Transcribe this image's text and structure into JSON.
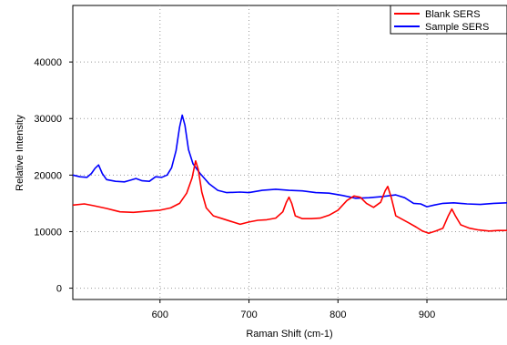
{
  "chart_data": {
    "type": "line",
    "title": "",
    "xlabel": "Raman Shift (cm-1)",
    "ylabel": "Relative Intensity",
    "xlim": [
      502,
      990
    ],
    "ylim": [
      -2000,
      50000
    ],
    "x_ticks": [
      600,
      700,
      800,
      900
    ],
    "y_ticks": [
      0,
      10000,
      20000,
      30000,
      40000
    ],
    "x_tick_labels": [
      "600",
      "700",
      "800",
      "900"
    ],
    "y_tick_labels": [
      "0",
      "10000",
      "20000",
      "30000",
      "40000"
    ],
    "grid": "dotted",
    "legend": "top-right",
    "series": [
      {
        "name": "Blank SERS",
        "color": "#ff0000",
        "points": [
          [
            502,
            14700
          ],
          [
            515,
            14900
          ],
          [
            525,
            14600
          ],
          [
            540,
            14100
          ],
          [
            555,
            13500
          ],
          [
            570,
            13400
          ],
          [
            585,
            13600
          ],
          [
            600,
            13800
          ],
          [
            612,
            14200
          ],
          [
            622,
            15000
          ],
          [
            630,
            16800
          ],
          [
            636,
            19500
          ],
          [
            640,
            22500
          ],
          [
            643,
            21000
          ],
          [
            647,
            17000
          ],
          [
            652,
            14200
          ],
          [
            660,
            12800
          ],
          [
            670,
            12300
          ],
          [
            680,
            11800
          ],
          [
            690,
            11300
          ],
          [
            700,
            11700
          ],
          [
            710,
            12000
          ],
          [
            720,
            12100
          ],
          [
            730,
            12400
          ],
          [
            738,
            13500
          ],
          [
            742,
            15200
          ],
          [
            745,
            16100
          ],
          [
            748,
            15000
          ],
          [
            752,
            12800
          ],
          [
            760,
            12300
          ],
          [
            770,
            12300
          ],
          [
            780,
            12400
          ],
          [
            790,
            12900
          ],
          [
            800,
            13800
          ],
          [
            810,
            15500
          ],
          [
            818,
            16300
          ],
          [
            825,
            16100
          ],
          [
            832,
            15000
          ],
          [
            840,
            14300
          ],
          [
            848,
            15200
          ],
          [
            853,
            17200
          ],
          [
            856,
            18000
          ],
          [
            860,
            16000
          ],
          [
            865,
            12800
          ],
          [
            872,
            12200
          ],
          [
            880,
            11500
          ],
          [
            888,
            10800
          ],
          [
            895,
            10100
          ],
          [
            902,
            9700
          ],
          [
            910,
            10100
          ],
          [
            918,
            10600
          ],
          [
            924,
            12800
          ],
          [
            928,
            14000
          ],
          [
            932,
            12800
          ],
          [
            938,
            11200
          ],
          [
            948,
            10600
          ],
          [
            958,
            10300
          ],
          [
            970,
            10100
          ],
          [
            980,
            10200
          ],
          [
            990,
            10200
          ]
        ]
      },
      {
        "name": "Sample SERS",
        "color": "#0000ff",
        "points": [
          [
            502,
            20000
          ],
          [
            510,
            19700
          ],
          [
            518,
            19600
          ],
          [
            523,
            20300
          ],
          [
            527,
            21200
          ],
          [
            531,
            21800
          ],
          [
            535,
            20300
          ],
          [
            540,
            19200
          ],
          [
            550,
            18900
          ],
          [
            560,
            18800
          ],
          [
            567,
            19100
          ],
          [
            573,
            19400
          ],
          [
            580,
            19000
          ],
          [
            588,
            18900
          ],
          [
            595,
            19700
          ],
          [
            602,
            19600
          ],
          [
            608,
            20000
          ],
          [
            613,
            21300
          ],
          [
            618,
            24300
          ],
          [
            622,
            28500
          ],
          [
            625,
            30600
          ],
          [
            628,
            28800
          ],
          [
            632,
            24500
          ],
          [
            637,
            22000
          ],
          [
            645,
            20300
          ],
          [
            655,
            18500
          ],
          [
            665,
            17300
          ],
          [
            675,
            16900
          ],
          [
            690,
            17000
          ],
          [
            700,
            16900
          ],
          [
            715,
            17300
          ],
          [
            730,
            17500
          ],
          [
            745,
            17300
          ],
          [
            760,
            17200
          ],
          [
            775,
            16900
          ],
          [
            790,
            16800
          ],
          [
            805,
            16400
          ],
          [
            820,
            15900
          ],
          [
            835,
            16000
          ],
          [
            850,
            16200
          ],
          [
            865,
            16500
          ],
          [
            875,
            16000
          ],
          [
            885,
            15000
          ],
          [
            893,
            14900
          ],
          [
            900,
            14400
          ],
          [
            908,
            14700
          ],
          [
            918,
            15000
          ],
          [
            930,
            15100
          ],
          [
            945,
            14900
          ],
          [
            960,
            14800
          ],
          [
            975,
            15000
          ],
          [
            990,
            15100
          ]
        ]
      }
    ]
  }
}
